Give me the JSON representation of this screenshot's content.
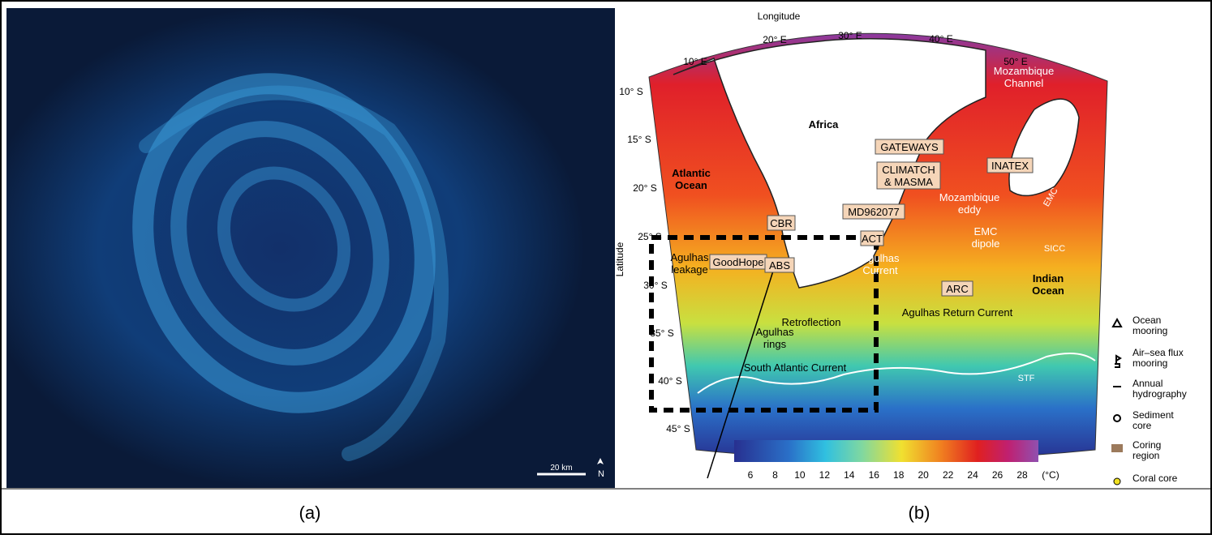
{
  "panel_a": {
    "scale_bar": "20 km",
    "north": "N",
    "caption": "(a)"
  },
  "panel_b": {
    "axis_title_x": "Longitude",
    "axis_title_y": "Latitude",
    "lon_labels": [
      "10° E",
      "20° E",
      "30° E",
      "40° E",
      "50° E"
    ],
    "lat_labels": [
      "10° S",
      "15° S",
      "20° S",
      "25° S",
      "30° S",
      "35° S",
      "40° S",
      "45° S"
    ],
    "places": {
      "africa": "Africa",
      "atlantic": [
        "Atlantic",
        "Ocean"
      ],
      "indian": [
        "Indian",
        "Ocean"
      ],
      "mozambique_channel": [
        "Mozambique",
        "Channel"
      ],
      "mozambique_eddy": [
        "Mozambique",
        "eddy"
      ],
      "emc_dipole": [
        "EMC",
        "dipole"
      ],
      "agulhas_current": [
        "Agulhas",
        "Current"
      ],
      "agulhas_return": "Agulhas Return Current",
      "retroflection": "Retroflection",
      "agulhas_rings": [
        "Agulhas",
        "rings"
      ],
      "agulhas_leakage": [
        "Agulhas",
        "leakage"
      ],
      "south_atlantic": "South Atlantic Current",
      "stf": "STF",
      "emc": "EMC",
      "sicc": "SICC"
    },
    "projects": {
      "gateways": "GATEWAYS",
      "climatch": [
        "CLIMATCH",
        "& MASMA"
      ],
      "md962077": "MD962077",
      "act": "ACT",
      "cbr": "CBR",
      "goodhope": "GoodHope",
      "abs": "ABS",
      "arc": "ARC",
      "inatex": "INATEX"
    },
    "colorbar": {
      "ticks": [
        6,
        8,
        10,
        12,
        14,
        16,
        18,
        20,
        22,
        24,
        26,
        28
      ],
      "unit": "(°C)"
    },
    "legend": [
      [
        "Ocean",
        "mooring"
      ],
      [
        "Air–sea flux",
        "mooring"
      ],
      [
        "Annual",
        "hydrography"
      ],
      [
        "Sediment",
        "core"
      ],
      [
        "Coring",
        "region"
      ],
      [
        "Coral core"
      ]
    ],
    "caption": "(b)"
  }
}
